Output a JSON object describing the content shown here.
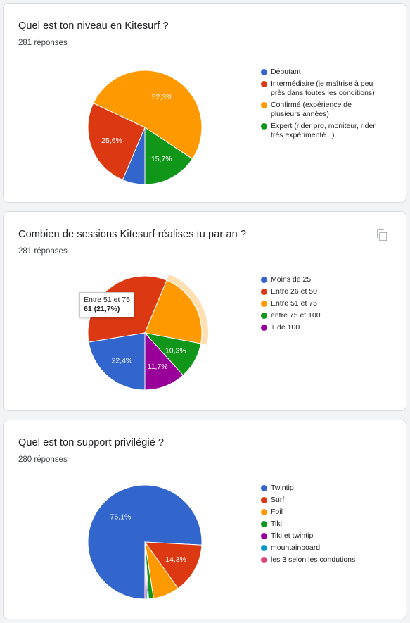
{
  "cards": [
    {
      "title": "Quel est ton niveau en Kitesurf ?",
      "responses": "281 réponses",
      "chart_data": {
        "type": "pie",
        "title": "Quel est ton niveau en Kitesurf ?",
        "start": "Débutant",
        "slices": [
          {
            "name": "Débutant",
            "value": 6.4,
            "color": "#3366cc",
            "label": ""
          },
          {
            "name": "Intermédiaire (je maîtrise à peu près dans toutes les conditions)",
            "value": 25.6,
            "color": "#dc3912",
            "label": "25,6%"
          },
          {
            "name": "Confirmé (expérience de plusieurs années)",
            "value": 52.3,
            "color": "#ff9900",
            "label": "52,3%"
          },
          {
            "name": "Expert (rider pro, moniteur, rider très expérimenté...)",
            "value": 15.7,
            "color": "#109618",
            "label": "15,7%"
          }
        ],
        "legend": [
          {
            "color": "#3366cc",
            "lines": [
              "Débutant"
            ]
          },
          {
            "color": "#dc3912",
            "lines": [
              "Intermédiaire (je maîtrise à peu",
              "près dans toutes les conditions)"
            ]
          },
          {
            "color": "#ff9900",
            "lines": [
              "Confirmé (expérience de",
              "plusieurs années)"
            ]
          },
          {
            "color": "#109618",
            "lines": [
              "Expert (rider pro, moniteur, rider",
              "très expérimenté...)"
            ]
          }
        ]
      }
    },
    {
      "title": "Combien de sessions Kitesurf réalises tu par an ?",
      "responses": "281 réponses",
      "copy_icon": "copy-icon",
      "tooltip": {
        "line1": "Entre 51 et 75",
        "line2": "61 (21,7%)"
      },
      "chart_data": {
        "type": "pie",
        "title": "Combien de sessions Kitesurf réalises tu par an ?",
        "highlighted": "Entre 51 et 75",
        "slices": [
          {
            "name": "Moins de 25",
            "value": 22.4,
            "color": "#3366cc",
            "label": "22,4%"
          },
          {
            "name": "Entre 26 et 50",
            "value": 33.8,
            "color": "#dc3912",
            "label": "33,8%"
          },
          {
            "name": "Entre 51 et 75",
            "value": 21.7,
            "color": "#ff9900",
            "label": ""
          },
          {
            "name": "entre 75 et 100",
            "value": 10.3,
            "color": "#109618",
            "label": "10,3%"
          },
          {
            "name": "+ de 100",
            "value": 11.7,
            "color": "#990099",
            "label": "11,7%"
          }
        ],
        "legend": [
          {
            "color": "#3366cc",
            "lines": [
              "Moins de 25"
            ]
          },
          {
            "color": "#dc3912",
            "lines": [
              "Entre 26 et 50"
            ]
          },
          {
            "color": "#ff9900",
            "lines": [
              "Entre 51 et 75"
            ]
          },
          {
            "color": "#109618",
            "lines": [
              "entre 75 et 100"
            ]
          },
          {
            "color": "#990099",
            "lines": [
              "+ de 100"
            ]
          }
        ]
      }
    },
    {
      "title": "Quel est ton support privilégié ?",
      "responses": "280 réponses",
      "chart_data": {
        "type": "pie",
        "title": "Quel est ton support privilégié ?",
        "slices": [
          {
            "name": "Twintip",
            "value": 76.1,
            "color": "#3366cc",
            "label": "76,1%"
          },
          {
            "name": "Surf",
            "value": 14.3,
            "color": "#dc3912",
            "label": "14,3%"
          },
          {
            "name": "Foil",
            "value": 7.5,
            "color": "#ff9900",
            "label": ""
          },
          {
            "name": "Tiki",
            "value": 1.4,
            "color": "#109618",
            "label": ""
          },
          {
            "name": "Tiki et twintip",
            "value": 0.35,
            "color": "#990099",
            "label": ""
          },
          {
            "name": "mountainboard",
            "value": 0.35,
            "color": "#0099c6",
            "label": ""
          },
          {
            "name": "les 3 selon les condutions",
            "value": 0.35,
            "color": "#dd4477",
            "label": ""
          }
        ],
        "legend": [
          {
            "color": "#3366cc",
            "lines": [
              "Twintip"
            ]
          },
          {
            "color": "#dc3912",
            "lines": [
              "Surf"
            ]
          },
          {
            "color": "#ff9900",
            "lines": [
              "Foil"
            ]
          },
          {
            "color": "#109618",
            "lines": [
              "Tiki"
            ]
          },
          {
            "color": "#990099",
            "lines": [
              "Tiki et twintip"
            ]
          },
          {
            "color": "#0099c6",
            "lines": [
              "mountainboard"
            ]
          },
          {
            "color": "#dd4477",
            "lines": [
              "les 3 selon les condutions"
            ]
          }
        ]
      }
    }
  ]
}
